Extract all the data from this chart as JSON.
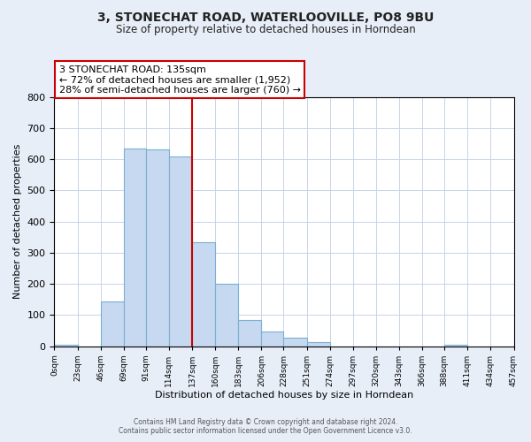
{
  "title": "3, STONECHAT ROAD, WATERLOOVILLE, PO8 9BU",
  "subtitle": "Size of property relative to detached houses in Horndean",
  "xlabel": "Distribution of detached houses by size in Horndean",
  "ylabel": "Number of detached properties",
  "footer_line1": "Contains HM Land Registry data © Crown copyright and database right 2024.",
  "footer_line2": "Contains public sector information licensed under the Open Government Licence v3.0.",
  "bin_edges": [
    0,
    23,
    46,
    69,
    91,
    114,
    137,
    160,
    183,
    206,
    228,
    251,
    274,
    297,
    320,
    343,
    366,
    388,
    411,
    434,
    457
  ],
  "bin_labels": [
    "0sqm",
    "23sqm",
    "46sqm",
    "69sqm",
    "91sqm",
    "114sqm",
    "137sqm",
    "160sqm",
    "183sqm",
    "206sqm",
    "228sqm",
    "251sqm",
    "274sqm",
    "297sqm",
    "320sqm",
    "343sqm",
    "366sqm",
    "388sqm",
    "411sqm",
    "434sqm",
    "457sqm"
  ],
  "counts": [
    3,
    0,
    143,
    634,
    632,
    610,
    333,
    201,
    84,
    46,
    27,
    12,
    0,
    0,
    0,
    0,
    0,
    3,
    0,
    0
  ],
  "bar_color": "#c6d9f0",
  "bar_edge_color": "#7bafd4",
  "vline_x": 137,
  "vline_color": "#cc0000",
  "annotation_text_line1": "3 STONECHAT ROAD: 135sqm",
  "annotation_text_line2": "← 72% of detached houses are smaller (1,952)",
  "annotation_text_line3": "28% of semi-detached houses are larger (760) →",
  "ylim": [
    0,
    800
  ],
  "yticks": [
    0,
    100,
    200,
    300,
    400,
    500,
    600,
    700,
    800
  ],
  "bg_color": "#e8eef8",
  "plot_bg_color": "#ffffff",
  "grid_color": "#c8d4e8"
}
